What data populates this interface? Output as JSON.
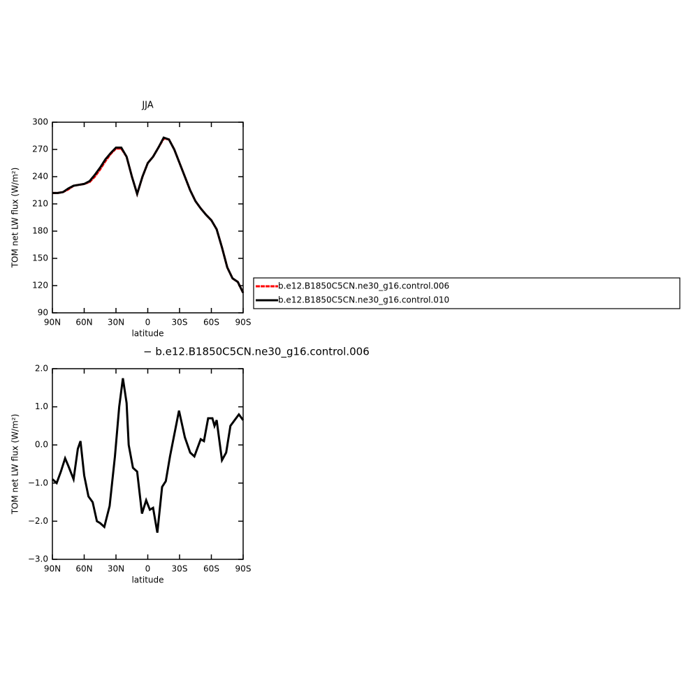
{
  "chart_data": [
    {
      "type": "line",
      "title": "JJA",
      "x_label": "latitude",
      "y_label": "TOM net LW flux (W/m²)",
      "x": [
        90,
        85,
        80,
        75,
        70,
        65,
        60,
        55,
        50,
        45,
        40,
        35,
        30,
        25,
        20,
        15,
        10,
        5,
        0,
        -5,
        -10,
        -15,
        -20,
        -25,
        -30,
        -35,
        -40,
        -45,
        -50,
        -55,
        -60,
        -65,
        -70,
        -75,
        -80,
        -85,
        -90
      ],
      "series": [
        {
          "name": "b.e12.B1850C5CN.ne30_g16.control.006",
          "color": "#ff0000",
          "dashed": true,
          "values": [
            222,
            222,
            223,
            226,
            230,
            231,
            232,
            234,
            240,
            248,
            257,
            265,
            271,
            271,
            262,
            240,
            221,
            240,
            255,
            262,
            272,
            282,
            281,
            270,
            255,
            240,
            225,
            213,
            205,
            198,
            192,
            182,
            162,
            140,
            128,
            124,
            112
          ]
        },
        {
          "name": "b.e12.B1850C5CN.ne30_g16.control.010",
          "color": "#000000",
          "dashed": false,
          "values": [
            222,
            222,
            223,
            227,
            230,
            231,
            232,
            235,
            242,
            250,
            259,
            266,
            272,
            272,
            262,
            240,
            221,
            240,
            255,
            262,
            272,
            283,
            281,
            270,
            255,
            240,
            225,
            213,
            205,
            198,
            192,
            182,
            162,
            140,
            128,
            124,
            112
          ]
        }
      ],
      "xlim": [
        90,
        -90
      ],
      "xticks": [
        {
          "value": 90,
          "label": "90N"
        },
        {
          "value": 60,
          "label": "60N"
        },
        {
          "value": 30,
          "label": "30N"
        },
        0,
        {
          "value": -30,
          "label": "30S"
        },
        {
          "value": -60,
          "label": "60S"
        },
        {
          "value": -90,
          "label": "90S"
        }
      ],
      "ylim": [
        90,
        300
      ],
      "yticks": [
        90,
        120,
        150,
        180,
        210,
        240,
        270,
        300
      ],
      "legend": "outside-right"
    },
    {
      "type": "line",
      "title": "− b.e12.B1850C5CN.ne30_g16.control.006",
      "x_label": "latitude",
      "y_label": "TOM net LW flux (W/m²)",
      "x": [
        90,
        86,
        82,
        78,
        75,
        70,
        66,
        63.5,
        60,
        56,
        52,
        48,
        45,
        41,
        36,
        31,
        27,
        23.5,
        20,
        18,
        14,
        10,
        5.5,
        1.5,
        -2,
        -5,
        -9,
        -13.5,
        -17,
        -21,
        -29.5,
        -35,
        -40,
        -44,
        -50,
        -53,
        -57,
        -61,
        -63,
        -65,
        -70,
        -74,
        -78,
        -86,
        -90
      ],
      "series": [
        {
          "name": "",
          "color": "#000000",
          "values": [
            -0.9,
            -1.0,
            -0.7,
            -0.35,
            -0.55,
            -0.9,
            -0.1,
            0.1,
            -0.8,
            -1.35,
            -1.5,
            -2.0,
            -2.05,
            -2.15,
            -1.6,
            -0.3,
            1.0,
            1.75,
            1.1,
            0.0,
            -0.6,
            -0.7,
            -1.8,
            -1.45,
            -1.7,
            -1.65,
            -2.3,
            -1.1,
            -0.95,
            -0.3,
            0.9,
            0.2,
            -0.2,
            -0.3,
            0.15,
            0.1,
            0.7,
            0.7,
            0.5,
            0.65,
            -0.4,
            -0.2,
            0.5,
            0.8,
            0.65
          ]
        }
      ],
      "xlim": [
        90,
        -90
      ],
      "xticks": [
        {
          "value": 90,
          "label": "90N"
        },
        {
          "value": 60,
          "label": "60N"
        },
        {
          "value": 30,
          "label": "30N"
        },
        0,
        {
          "value": -30,
          "label": "30S"
        },
        {
          "value": -60,
          "label": "60S"
        },
        {
          "value": -90,
          "label": "90S"
        }
      ],
      "ylim": [
        -3,
        2
      ],
      "yticks": [
        {
          "value": -3,
          "label": "−3.0"
        },
        {
          "value": -2,
          "label": "−2.0"
        },
        {
          "value": -1,
          "label": "−1.0"
        },
        {
          "value": 0,
          "label": "0.0"
        },
        {
          "value": 1,
          "label": "1.0"
        },
        {
          "value": 2,
          "label": "2.0"
        }
      ]
    }
  ]
}
